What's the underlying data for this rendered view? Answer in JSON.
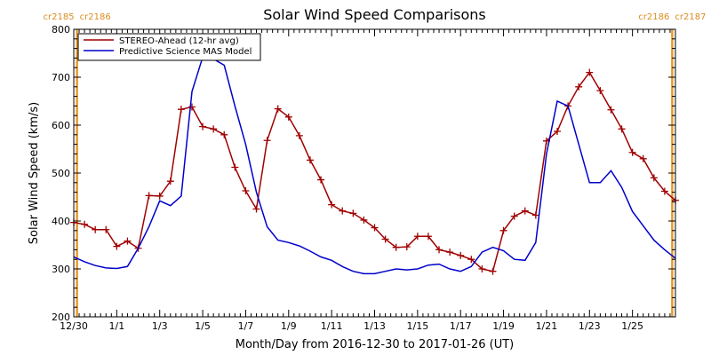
{
  "chart_data": {
    "type": "line",
    "title": "Solar Wind Speed Comparisons",
    "xlabel": "Month/Day from 2016-12-30 to 2017-01-26 (UT)",
    "ylabel": "Solar Wind Speed (km/s)",
    "xlim": [
      0,
      28
    ],
    "ylim": [
      200,
      800
    ],
    "yticks": [
      200,
      300,
      400,
      500,
      600,
      700,
      800
    ],
    "xticks": [
      {
        "x": 0,
        "label": "12/30"
      },
      {
        "x": 2,
        "label": "1/1"
      },
      {
        "x": 4,
        "label": "1/3"
      },
      {
        "x": 6,
        "label": "1/5"
      },
      {
        "x": 8,
        "label": "1/7"
      },
      {
        "x": 10,
        "label": "1/9"
      },
      {
        "x": 12,
        "label": "1/11"
      },
      {
        "x": 14,
        "label": "1/13"
      },
      {
        "x": 16,
        "label": "1/15"
      },
      {
        "x": 18,
        "label": "1/17"
      },
      {
        "x": 20,
        "label": "1/19"
      },
      {
        "x": 22,
        "label": "1/21"
      },
      {
        "x": 24,
        "label": "1/23"
      },
      {
        "x": 26,
        "label": "1/25"
      }
    ],
    "carrington_markers": [
      {
        "x": 0.15,
        "label_left": "cr2185",
        "label_right": "cr2186"
      },
      {
        "x": 27.85,
        "label_left": "cr2186",
        "label_right": "cr2187"
      }
    ],
    "legend_position": "top-left",
    "series": [
      {
        "name": "STEREO-Ahead (12-hr avg)",
        "color": "#a00000",
        "marker": "plus",
        "x": [
          0,
          0.5,
          1,
          1.5,
          2,
          2.5,
          3,
          3.5,
          4,
          4.5,
          5,
          5.5,
          6,
          6.5,
          7,
          7.5,
          8,
          8.5,
          9,
          9.5,
          10,
          10.5,
          11,
          11.5,
          12,
          12.5,
          13,
          13.5,
          14,
          14.5,
          15,
          15.5,
          16,
          16.5,
          17,
          17.5,
          18,
          18.5,
          19,
          19.5,
          20,
          20.5,
          21,
          21.5,
          22,
          22.5,
          23,
          23.5,
          24,
          24.5,
          25,
          25.5,
          26,
          26.5,
          27,
          27.5,
          28
        ],
        "values": [
          397,
          393,
          382,
          382,
          347,
          358,
          343,
          453,
          452,
          483,
          633,
          638,
          597,
          592,
          580,
          512,
          463,
          425,
          568,
          634,
          617,
          578,
          527,
          486,
          434,
          421,
          416,
          402,
          386,
          362,
          345,
          346,
          368,
          368,
          340,
          335,
          328,
          320,
          300,
          295,
          380,
          410,
          421,
          412,
          567,
          587,
          640,
          680,
          710,
          672,
          632,
          592,
          543,
          530,
          490,
          462,
          443
        ]
      },
      {
        "name": "Predictive Science MAS Model",
        "color": "#0000cc",
        "marker": "none",
        "x": [
          0,
          0.5,
          1,
          1.5,
          2,
          2.5,
          3,
          3.5,
          4,
          4.5,
          5,
          5.5,
          6,
          6.5,
          7,
          7.5,
          8,
          8.5,
          9,
          9.5,
          10,
          10.5,
          11,
          11.5,
          12,
          12.5,
          13,
          13.5,
          14,
          14.5,
          15,
          15.5,
          16,
          16.5,
          17,
          17.5,
          18,
          18.5,
          19,
          19.5,
          20,
          20.5,
          21,
          21.5,
          22,
          22.5,
          23,
          23.5,
          24,
          24.5,
          25,
          25.5,
          26,
          26.5,
          27,
          27.5,
          28
        ],
        "values": [
          325,
          315,
          307,
          302,
          301,
          305,
          343,
          388,
          442,
          432,
          452,
          670,
          742,
          738,
          725,
          640,
          560,
          460,
          388,
          360,
          355,
          348,
          337,
          325,
          318,
          305,
          295,
          290,
          290,
          295,
          300,
          298,
          300,
          308,
          310,
          300,
          295,
          305,
          335,
          345,
          338,
          320,
          318,
          355,
          540,
          650,
          640,
          560,
          480,
          480,
          505,
          470,
          420,
          390,
          360,
          340,
          322
        ]
      }
    ]
  }
}
